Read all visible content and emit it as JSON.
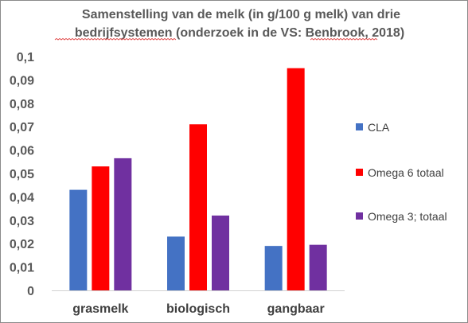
{
  "chart_data": {
    "type": "bar",
    "title_lines": [
      "Samenstelling van de melk (in g/100 g melk)  van drie",
      "bedrijfsystemen (onderzoek in de VS: Benbrook, 2018)"
    ],
    "xlabel": "",
    "ylabel": "",
    "categories": [
      "grasmelk",
      "biologisch",
      "gangbaar"
    ],
    "series": [
      {
        "name": "CLA",
        "color": "#4472C4",
        "values": [
          0.043,
          0.023,
          0.019
        ]
      },
      {
        "name": "Omega 6 totaal",
        "color": "#FF0000",
        "values": [
          0.053,
          0.071,
          0.095
        ]
      },
      {
        "name": "Omega 3; totaal",
        "color": "#7030A0",
        "values": [
          0.0565,
          0.032,
          0.0195
        ]
      }
    ],
    "ylim": [
      0,
      0.1
    ],
    "yticks": [
      {
        "value": 0,
        "label": "0"
      },
      {
        "value": 0.01,
        "label": "0,01"
      },
      {
        "value": 0.02,
        "label": "0,02"
      },
      {
        "value": 0.03,
        "label": "0,03"
      },
      {
        "value": 0.04,
        "label": "0,04"
      },
      {
        "value": 0.05,
        "label": "0,05"
      },
      {
        "value": 0.06,
        "label": "0,06"
      },
      {
        "value": 0.07,
        "label": "0,07"
      },
      {
        "value": 0.08,
        "label": "0,08"
      },
      {
        "value": 0.09,
        "label": "0,09"
      },
      {
        "value": 0.1,
        "label": "0,1"
      }
    ],
    "grid": false,
    "legend_position": "right"
  }
}
